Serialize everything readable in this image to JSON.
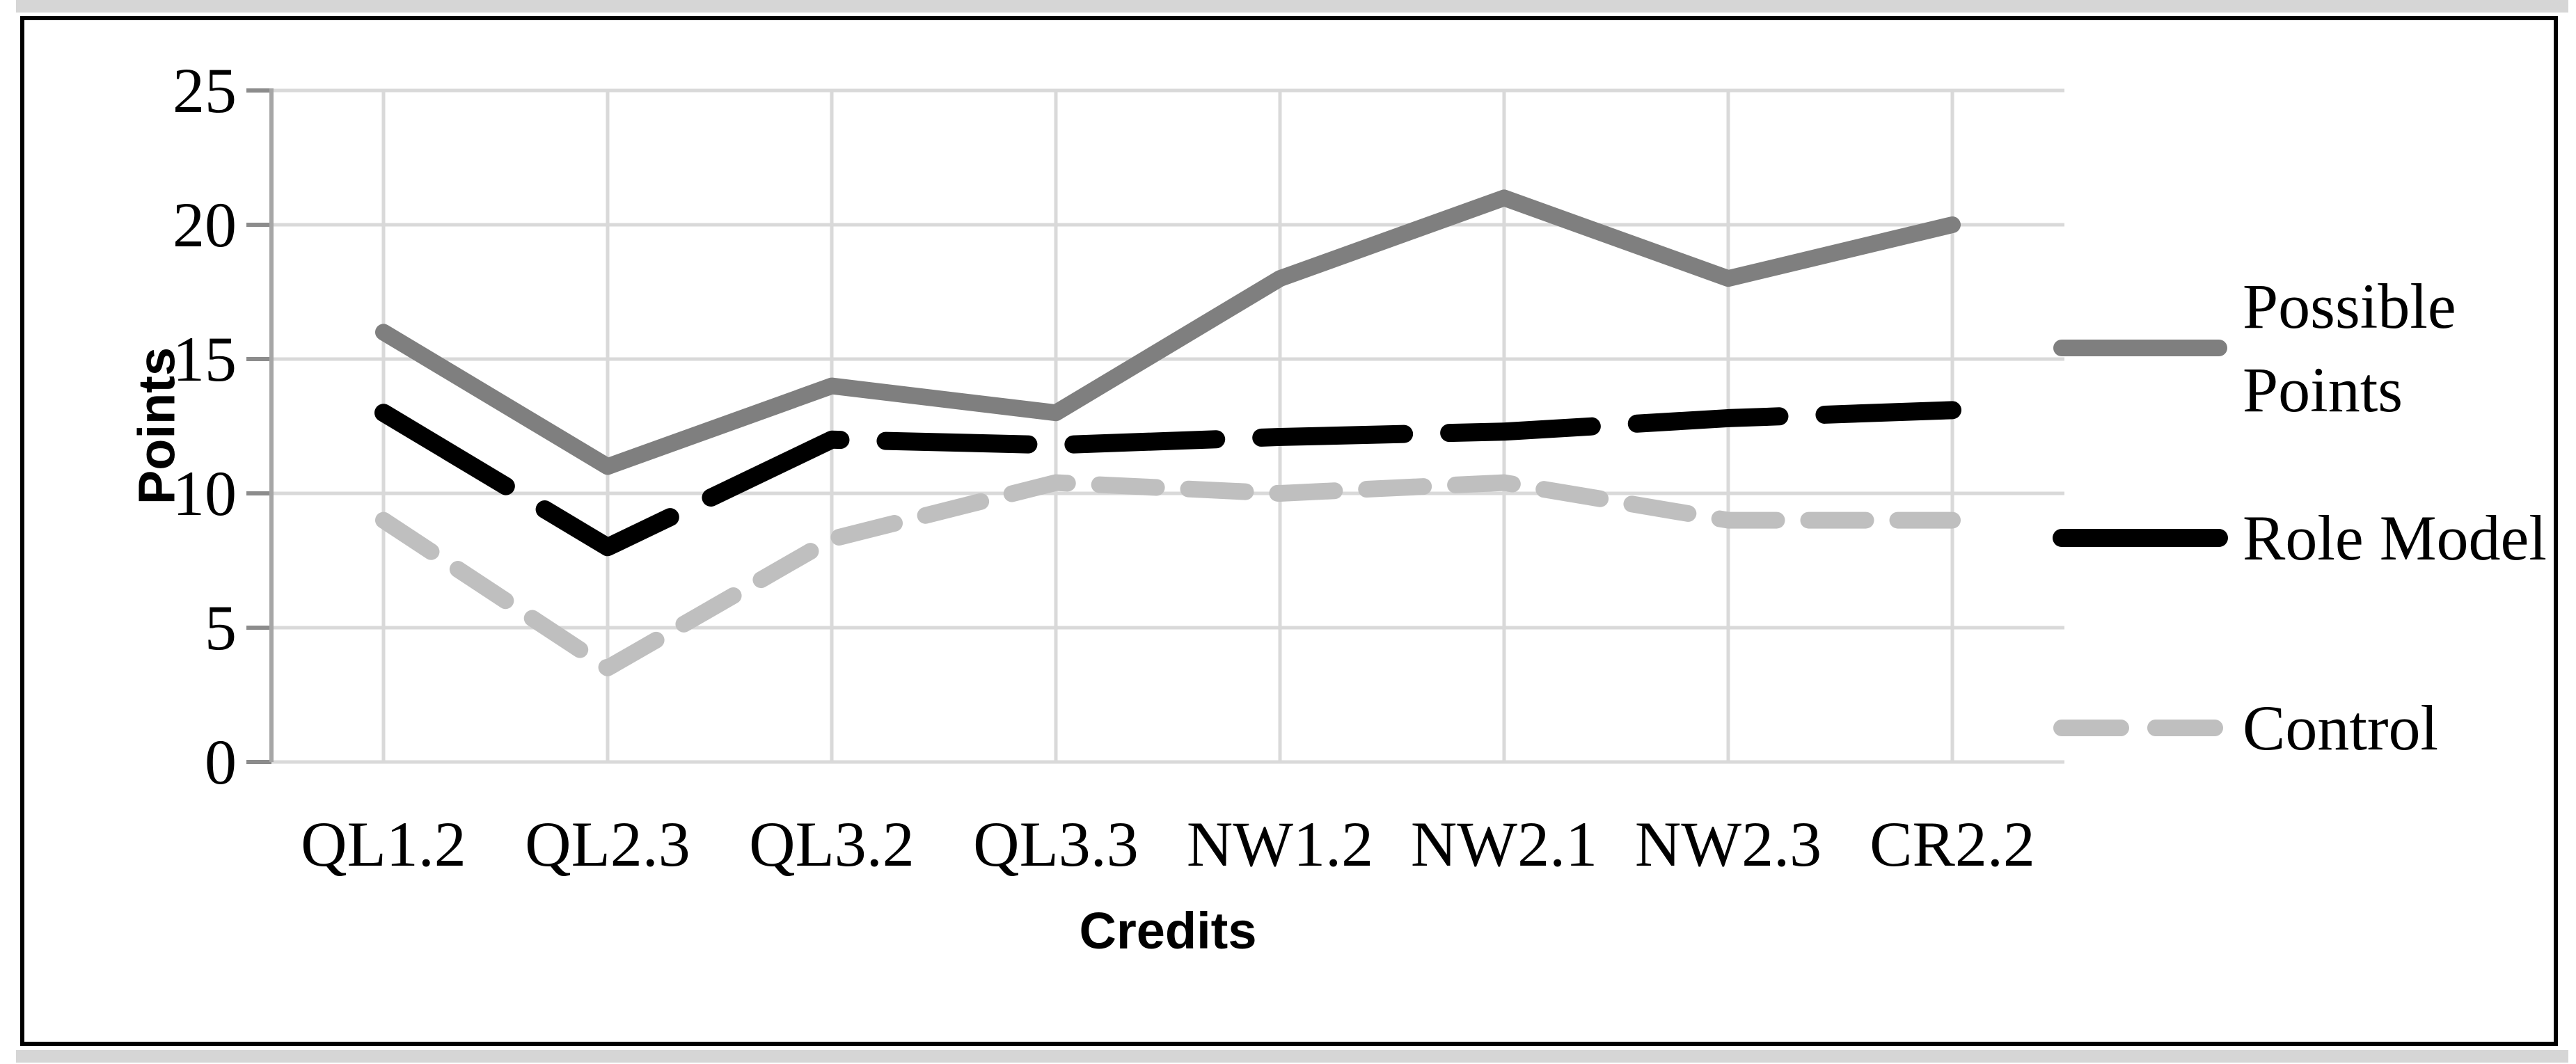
{
  "chart_data": {
    "type": "line",
    "categories": [
      "QL1.2",
      "QL2.3",
      "QL3.2",
      "QL3.3",
      "NW1.2",
      "NW2.1",
      "NW2.3",
      "CR2.2"
    ],
    "series": [
      {
        "name": "Possible Points",
        "values": [
          16,
          11,
          14,
          13,
          18,
          21,
          18,
          20
        ],
        "color": "#7F7F7F",
        "style": "solid"
      },
      {
        "name": "Role Model",
        "values": [
          13,
          8,
          12,
          11.8,
          12.1,
          12.3,
          12.8,
          13.1
        ],
        "color": "#000000",
        "style": "long-dash"
      },
      {
        "name": "Control",
        "values": [
          9,
          3.5,
          8.3,
          10.4,
          10,
          10.4,
          9,
          9
        ],
        "color": "#BFBFBF",
        "style": "dash"
      }
    ],
    "title": "",
    "xlabel": "Credits",
    "ylabel": "Points",
    "ylim": [
      0,
      25
    ],
    "ytick_labels": [
      "0",
      "5",
      "10",
      "15",
      "20",
      "25"
    ],
    "grid": true,
    "legend_position": "right"
  },
  "colors": {
    "gridline": "#D9D9D9",
    "axis_line": "#A6A6A6",
    "tick_mark": "#8C8C8C",
    "frame_border": "#000000",
    "frame_strip": "#D6D6D6",
    "background": "#FFFFFF"
  }
}
